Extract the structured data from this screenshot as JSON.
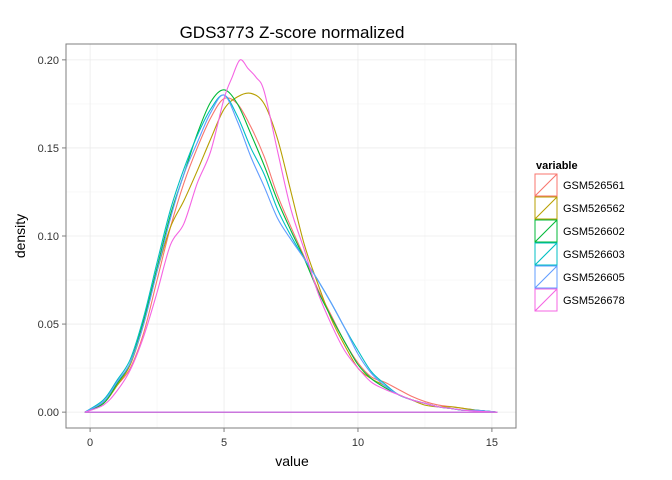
{
  "chart_data": {
    "type": "line",
    "title": "GDS3773 Z-score normalized",
    "xlabel": "value",
    "ylabel": "density",
    "xlim": [
      -0.9,
      15.9
    ],
    "ylim": [
      -0.009,
      0.209
    ],
    "x_ticks": [
      0,
      5,
      10,
      15
    ],
    "x_tick_labels": [
      "0",
      "5",
      "10",
      "15"
    ],
    "y_ticks": [
      0.0,
      0.05,
      0.1,
      0.15,
      0.2
    ],
    "y_tick_labels": [
      "0.00",
      "0.05",
      "0.10",
      "0.15",
      "0.20"
    ],
    "grid": true,
    "legend": {
      "title": "variable",
      "position": "right"
    },
    "series": [
      {
        "name": "GSM526561",
        "color": "#F8766D",
        "x": [
          -0.2,
          0.5,
          1,
          1.5,
          2,
          2.5,
          3,
          3.5,
          4,
          4.5,
          5,
          5.5,
          6,
          6.5,
          7,
          7.5,
          8,
          8.5,
          9,
          9.5,
          10,
          10.5,
          11,
          11.5,
          12,
          12.5,
          13,
          13.5,
          14,
          14.5,
          15.2
        ],
        "y": [
          0.0,
          0.005,
          0.015,
          0.025,
          0.045,
          0.075,
          0.105,
          0.13,
          0.15,
          0.167,
          0.178,
          0.175,
          0.162,
          0.145,
          0.123,
          0.105,
          0.088,
          0.07,
          0.055,
          0.04,
          0.028,
          0.02,
          0.017,
          0.013,
          0.009,
          0.006,
          0.004,
          0.003,
          0.002,
          0.001,
          0.0
        ]
      },
      {
        "name": "GSM526562",
        "color": "#B79F00",
        "x": [
          -0.2,
          0.5,
          1,
          1.5,
          2,
          2.5,
          3,
          3.5,
          4,
          4.5,
          5,
          5.5,
          6,
          6.5,
          7,
          7.5,
          8,
          8.5,
          9,
          9.5,
          10,
          10.5,
          11,
          11.5,
          12,
          12.5,
          13,
          13.5,
          14,
          14.5,
          15.2
        ],
        "y": [
          0.0,
          0.005,
          0.015,
          0.027,
          0.05,
          0.08,
          0.105,
          0.12,
          0.137,
          0.155,
          0.172,
          0.179,
          0.181,
          0.175,
          0.155,
          0.125,
          0.095,
          0.073,
          0.053,
          0.038,
          0.025,
          0.019,
          0.015,
          0.01,
          0.007,
          0.004,
          0.003,
          0.003,
          0.002,
          0.001,
          0.0
        ]
      },
      {
        "name": "GSM526602",
        "color": "#00BA38",
        "x": [
          -0.2,
          0.5,
          1,
          1.5,
          2,
          2.5,
          3,
          3.5,
          4,
          4.5,
          5,
          5.5,
          6,
          6.5,
          7,
          7.5,
          8,
          8.5,
          9,
          9.5,
          10,
          10.5,
          11,
          11.5,
          12,
          12.5,
          13,
          13.5,
          14,
          14.5,
          15.2
        ],
        "y": [
          0.0,
          0.005,
          0.016,
          0.028,
          0.052,
          0.082,
          0.112,
          0.135,
          0.158,
          0.176,
          0.183,
          0.175,
          0.158,
          0.14,
          0.12,
          0.103,
          0.087,
          0.069,
          0.054,
          0.04,
          0.027,
          0.019,
          0.014,
          0.01,
          0.007,
          0.005,
          0.003,
          0.002,
          0.001,
          0.001,
          0.0
        ]
      },
      {
        "name": "GSM526603",
        "color": "#00BFC4",
        "x": [
          -0.2,
          0.5,
          1,
          1.5,
          2,
          2.5,
          3,
          3.5,
          4,
          4.5,
          5,
          5.5,
          6,
          6.5,
          7,
          7.5,
          8,
          8.5,
          9,
          9.5,
          10,
          10.5,
          11,
          11.5,
          12,
          12.5,
          13,
          13.5,
          14,
          14.5,
          15.2
        ],
        "y": [
          0.0,
          0.007,
          0.018,
          0.03,
          0.054,
          0.085,
          0.115,
          0.138,
          0.157,
          0.172,
          0.18,
          0.168,
          0.15,
          0.135,
          0.115,
          0.1,
          0.087,
          0.075,
          0.062,
          0.048,
          0.035,
          0.023,
          0.016,
          0.01,
          0.007,
          0.005,
          0.003,
          0.002,
          0.001,
          0.001,
          0.0
        ]
      },
      {
        "name": "GSM526605",
        "color": "#619CFF",
        "x": [
          -0.2,
          0.5,
          1,
          1.5,
          2,
          2.5,
          3,
          3.5,
          4,
          4.5,
          5,
          5.5,
          6,
          6.5,
          7,
          7.5,
          8,
          8.5,
          9,
          9.5,
          10,
          10.5,
          11,
          11.5,
          12,
          12.5,
          13,
          13.5,
          14,
          14.5,
          15.2
        ],
        "y": [
          0.0,
          0.006,
          0.017,
          0.028,
          0.05,
          0.08,
          0.11,
          0.135,
          0.153,
          0.17,
          0.18,
          0.165,
          0.145,
          0.128,
          0.11,
          0.098,
          0.087,
          0.075,
          0.062,
          0.048,
          0.033,
          0.022,
          0.015,
          0.01,
          0.007,
          0.005,
          0.003,
          0.002,
          0.001,
          0.001,
          0.0
        ]
      },
      {
        "name": "GSM526678",
        "color": "#F564E3",
        "x": [
          -0.2,
          0.5,
          1,
          1.5,
          2,
          2.5,
          3,
          3.5,
          4,
          4.5,
          5,
          5.3,
          5.6,
          5.9,
          6.2,
          6.5,
          7,
          7.5,
          8,
          8.5,
          9,
          9.5,
          10,
          10.5,
          11,
          11.5,
          12,
          12.5,
          13,
          13.5,
          14,
          14.5,
          15.2
        ],
        "y": [
          0.0,
          0.004,
          0.012,
          0.024,
          0.043,
          0.068,
          0.095,
          0.107,
          0.13,
          0.148,
          0.178,
          0.19,
          0.2,
          0.195,
          0.19,
          0.182,
          0.148,
          0.115,
          0.092,
          0.068,
          0.05,
          0.035,
          0.025,
          0.017,
          0.013,
          0.01,
          0.007,
          0.005,
          0.003,
          0.002,
          0.001,
          0.0005,
          0.0
        ]
      }
    ]
  }
}
